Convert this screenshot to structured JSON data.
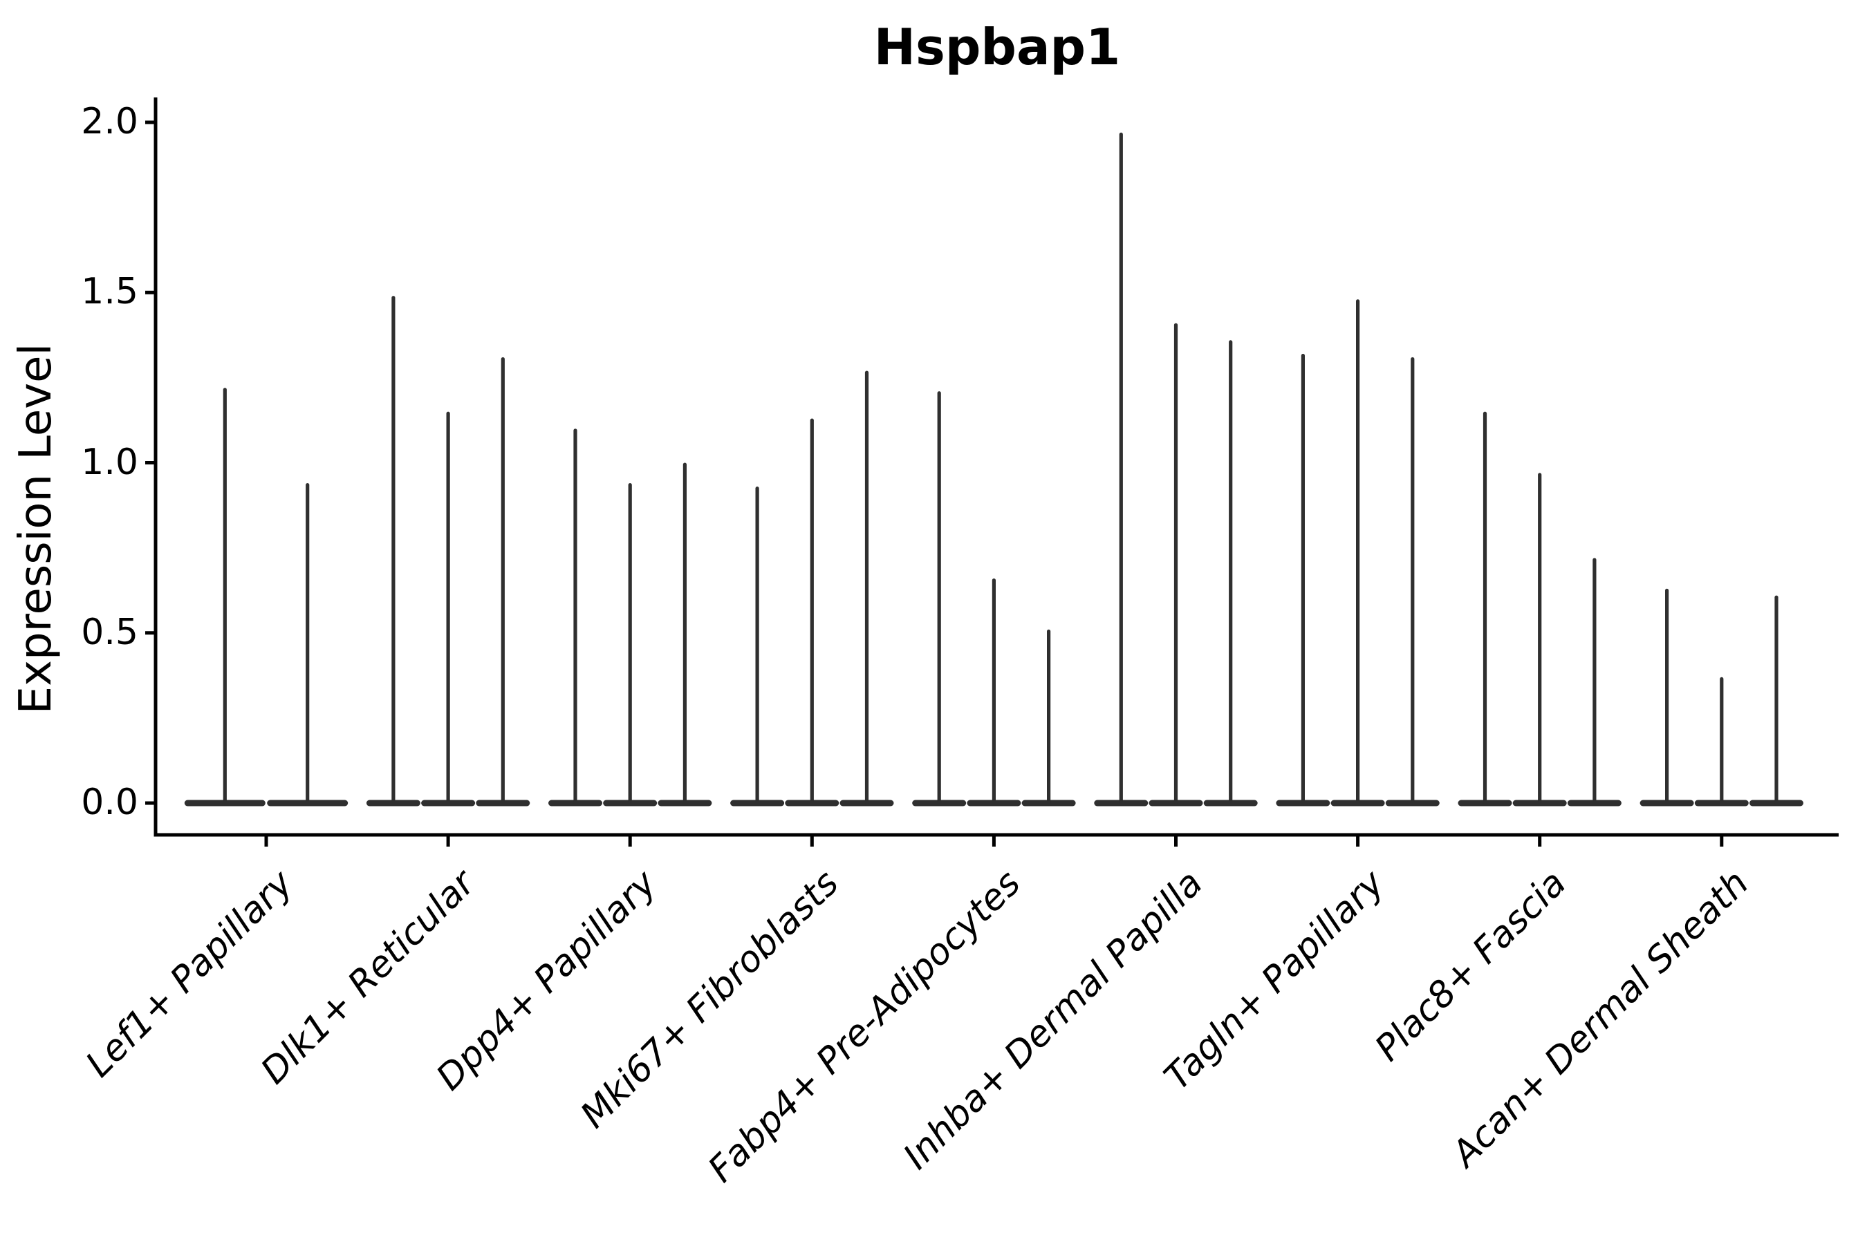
{
  "chart_data": {
    "type": "violin",
    "title": "Hspbap1",
    "xlabel": "",
    "ylabel": "Expression Level",
    "ylim": [
      -0.09,
      2.08
    ],
    "yticks": [
      0.0,
      0.5,
      1.0,
      1.5,
      2.0
    ],
    "ytick_labels": [
      "0.0",
      "0.5",
      "1.0",
      "1.5",
      "2.0"
    ],
    "grid": false,
    "legend": "none",
    "style": "Seurat-style stacked violin: each violin is a flat dense mass at expression 0 with a thin needle-like tail rising to the peak value; 2-3 violins per category group",
    "groups": [
      {
        "label": "Lef1+ Papillary",
        "violin_peaks": [
          1.22,
          0.94
        ]
      },
      {
        "label": "Dlk1+ Reticular",
        "violin_peaks": [
          1.49,
          1.15,
          1.31
        ]
      },
      {
        "label": "Dpp4+ Papillary",
        "violin_peaks": [
          1.1,
          0.94,
          1.0
        ]
      },
      {
        "label": "Mki67+ Fibroblasts",
        "violin_peaks": [
          0.93,
          1.13,
          1.27
        ]
      },
      {
        "label": "Fabp4+ Pre-Adipocytes",
        "violin_peaks": [
          1.21,
          0.66,
          0.51
        ]
      },
      {
        "label": "Inhba+ Dermal Papilla",
        "violin_peaks": [
          1.97,
          1.41,
          1.36
        ]
      },
      {
        "label": "Tagln+ Papillary",
        "violin_peaks": [
          1.32,
          1.48,
          1.31
        ]
      },
      {
        "label": "Plac8+ Fascia",
        "violin_peaks": [
          1.15,
          0.97,
          0.72
        ]
      },
      {
        "label": "Acan+ Dermal Sheath",
        "violin_peaks": [
          0.63,
          0.37,
          0.61
        ]
      }
    ],
    "colors": {
      "violin": "#2f2f2f",
      "axis": "#000000",
      "text": "#000000",
      "background": "#ffffff"
    }
  }
}
